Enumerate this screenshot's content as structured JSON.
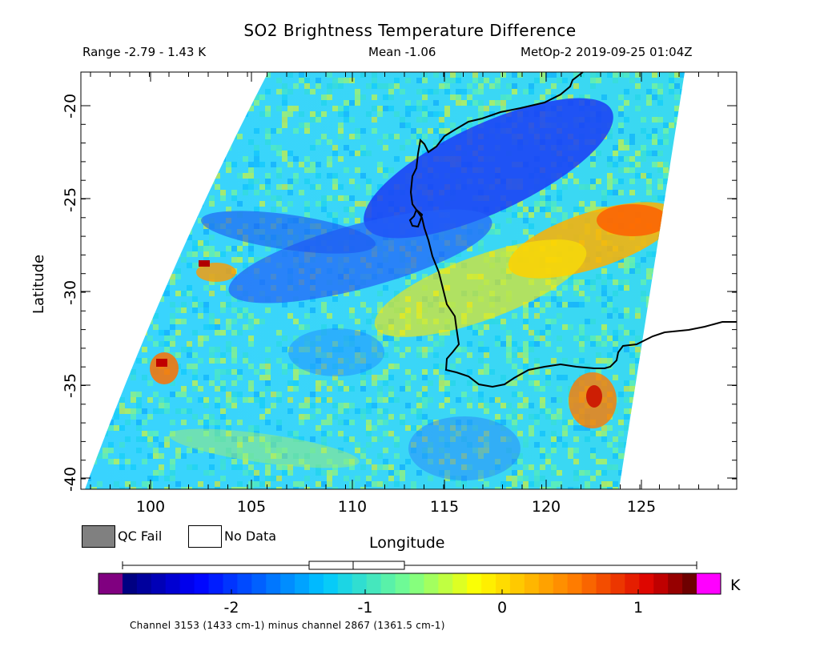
{
  "title": "SO2 Brightness Temperature Difference",
  "header": {
    "range": "Range -2.79 - 1.43 K",
    "mean": "Mean -1.06",
    "satellite": "MetOp-2 2019-09-25 01:04Z"
  },
  "axes": {
    "xlabel": "Longitude",
    "ylabel": "Latitude",
    "xticks": [
      "100",
      "105",
      "110",
      "115",
      "120",
      "125"
    ],
    "yticks": [
      "-20",
      "-25",
      "-30",
      "-35",
      "-40"
    ]
  },
  "legend": {
    "qc_fail": "QC Fail",
    "no_data": "No Data",
    "qc_color": "#808080",
    "nodata_color": "#ffffff"
  },
  "colorbar": {
    "ticks": [
      "-2",
      "-1",
      "0",
      "1"
    ],
    "unit": "K",
    "under_color": "#800080",
    "over_color": "#ff00ff",
    "min": -2.79,
    "max": 1.43,
    "mean": -1.06
  },
  "caption": "Channel 3153 (1433 cm-1) minus channel 2867 (1361.5 cm-1)",
  "colors": {
    "coastline": "#000000"
  }
}
